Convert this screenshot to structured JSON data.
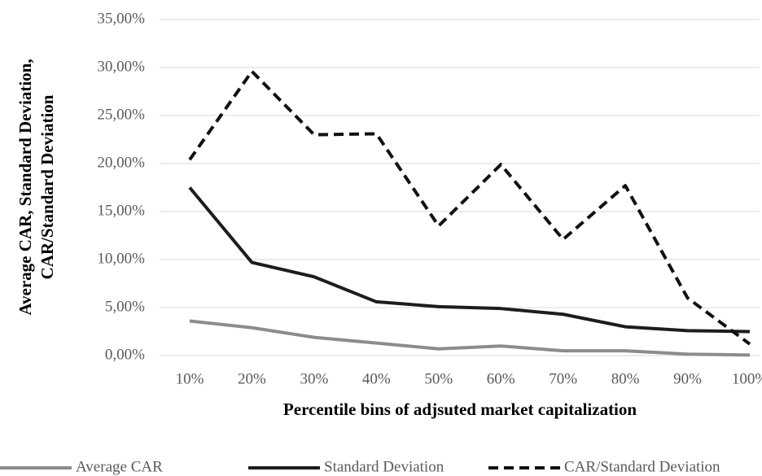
{
  "chart_data": {
    "type": "line",
    "xlabel": "Percentile bins of adjsuted market capitalization",
    "ylabel": [
      "Average CAR, Standard Deviation,",
      "CAR/Standard Deviation"
    ],
    "categories": [
      "10%",
      "20%",
      "30%",
      "40%",
      "50%",
      "60%",
      "70%",
      "80%",
      "90%",
      "100%"
    ],
    "series": [
      {
        "name": "Average CAR",
        "color": "#8c8c8c",
        "dashed": false,
        "values": [
          3.6,
          2.9,
          1.9,
          1.3,
          0.7,
          1.0,
          0.5,
          0.5,
          0.15,
          0.05
        ]
      },
      {
        "name": "Standard Deviation",
        "color": "#1f1d17",
        "dashed": false,
        "values": [
          17.5,
          9.7,
          8.2,
          5.6,
          5.1,
          4.9,
          4.3,
          3.0,
          2.6,
          2.5
        ]
      },
      {
        "name": "CAR/Standard Deviation",
        "color": "#111111",
        "dashed": true,
        "values": [
          20.4,
          29.6,
          23.0,
          23.1,
          13.5,
          19.9,
          12.1,
          17.7,
          6.0,
          1.2
        ]
      }
    ],
    "ylim": [
      0,
      35
    ],
    "yticks": [
      {
        "value": 0,
        "label": "0,00%"
      },
      {
        "value": 5,
        "label": "5,00%"
      },
      {
        "value": 10,
        "label": "10,00%"
      },
      {
        "value": 15,
        "label": "15,00%"
      },
      {
        "value": 20,
        "label": "20,00%"
      },
      {
        "value": 25,
        "label": "25,00%"
      },
      {
        "value": 30,
        "label": "30,00%"
      },
      {
        "value": 35,
        "label": "35,00%"
      }
    ],
    "grid": true,
    "legend": "bottom"
  }
}
